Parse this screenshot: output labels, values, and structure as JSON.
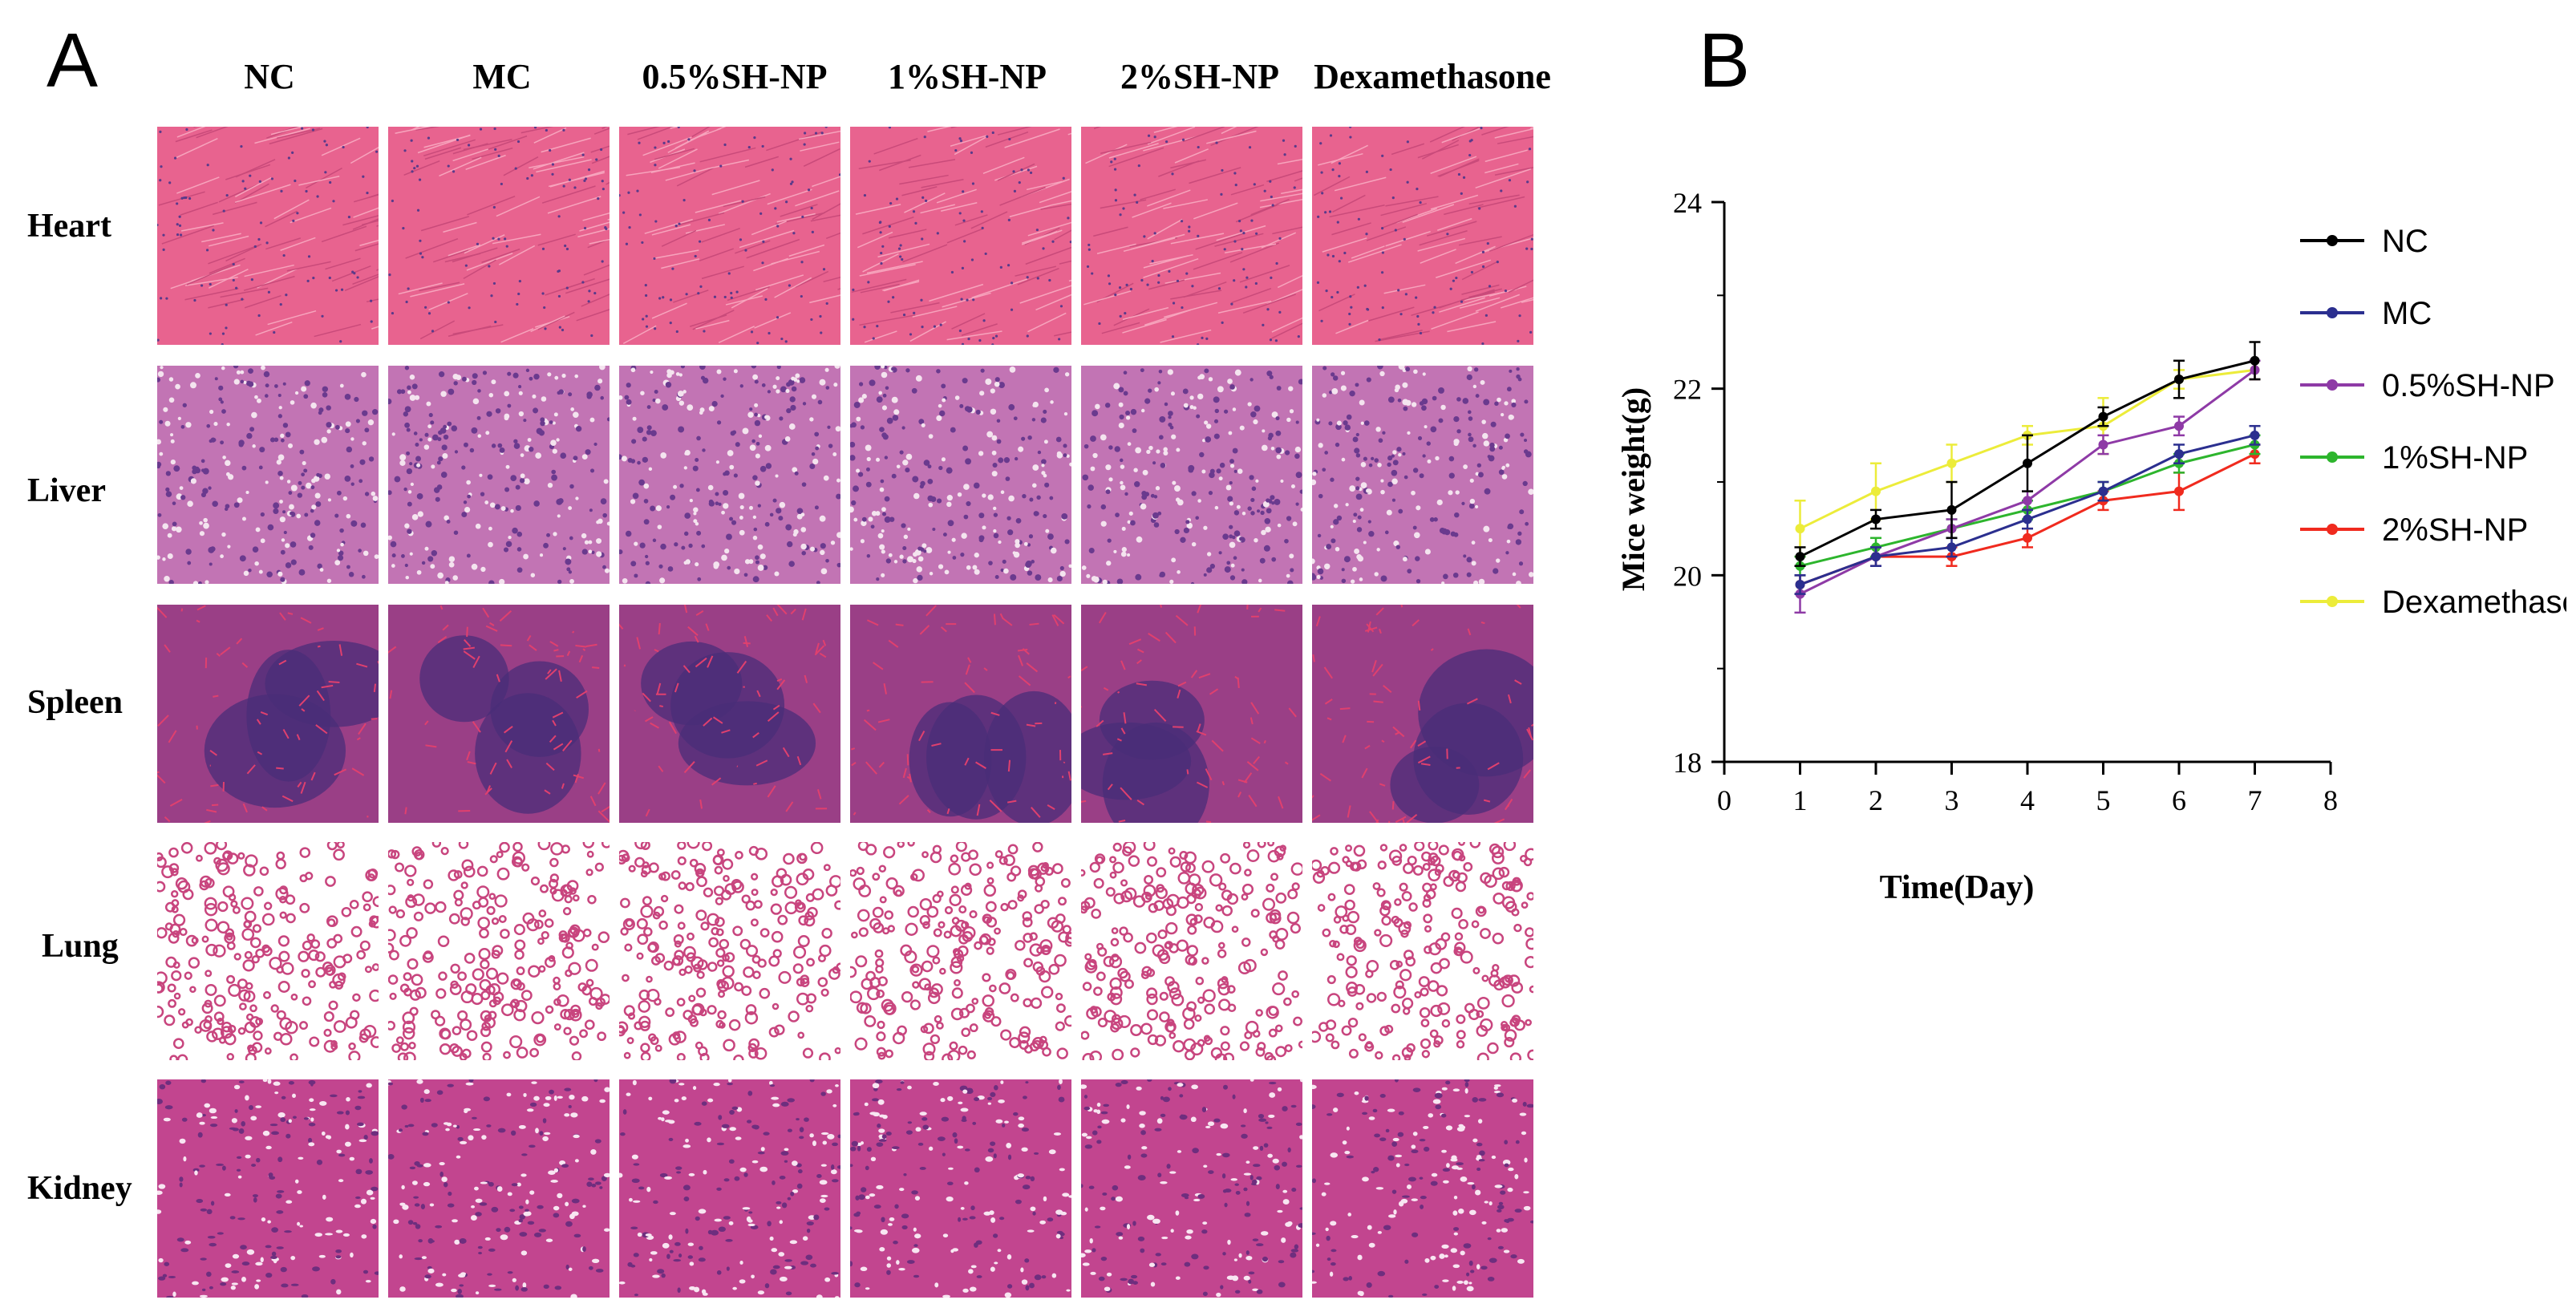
{
  "panels": {
    "a_label": "A",
    "b_label": "B"
  },
  "histology": {
    "columns": [
      "NC",
      "MC",
      "0.5%SH-NP",
      "1%SH-NP",
      "2%SH-NP",
      "Dexamethasone"
    ],
    "rows": [
      "Heart",
      "Liver",
      "Spleen",
      "Lung",
      "Kidney"
    ],
    "tissue_colors": {
      "Heart": "#e8638f",
      "Liver": "#c274b4",
      "Spleen": "#9a3f86",
      "Lung": "#ffffff",
      "Kidney": "#c2458f"
    }
  },
  "chart_data": {
    "type": "line",
    "title": "",
    "xlabel": "Time(Day)",
    "ylabel": "Mice weight(g)",
    "xlim": [
      0,
      8
    ],
    "ylim": [
      18,
      24
    ],
    "x_ticks": [
      0,
      1,
      2,
      3,
      4,
      5,
      6,
      7,
      8
    ],
    "y_ticks": [
      18,
      20,
      22,
      24
    ],
    "grid": false,
    "legend_position": "right",
    "x": [
      1,
      2,
      3,
      4,
      5,
      6,
      7
    ],
    "series": [
      {
        "name": "NC",
        "color": "#000000",
        "values": [
          20.2,
          20.6,
          20.7,
          21.2,
          21.7,
          22.1,
          22.3
        ],
        "errors": [
          0.1,
          0.1,
          0.3,
          0.3,
          0.1,
          0.2,
          0.2
        ]
      },
      {
        "name": "MC",
        "color": "#2b2f8f",
        "values": [
          19.9,
          20.2,
          20.3,
          20.6,
          20.9,
          21.3,
          21.5
        ],
        "errors": [
          0.1,
          0.1,
          0.1,
          0.1,
          0.1,
          0.1,
          0.1
        ]
      },
      {
        "name": "0.5%SH-NP",
        "color": "#8e3aa6",
        "values": [
          19.8,
          20.2,
          20.5,
          20.8,
          21.4,
          21.6,
          22.2
        ],
        "errors": [
          0.2,
          0.1,
          0.1,
          0.1,
          0.1,
          0.1,
          0.1
        ]
      },
      {
        "name": "1%SH-NP",
        "color": "#2db52d",
        "values": [
          20.1,
          20.3,
          20.5,
          20.7,
          20.9,
          21.2,
          21.4
        ],
        "errors": [
          0.1,
          0.1,
          0.1,
          0.1,
          0.1,
          0.1,
          0.1
        ]
      },
      {
        "name": "2%SH-NP",
        "color": "#f02a1e",
        "values": [
          19.9,
          20.2,
          20.2,
          20.4,
          20.8,
          20.9,
          21.3
        ],
        "errors": [
          0.1,
          0.1,
          0.1,
          0.1,
          0.1,
          0.2,
          0.1
        ]
      },
      {
        "name": "Dexamethasone",
        "color": "#ecec3a",
        "values": [
          20.5,
          20.9,
          21.2,
          21.5,
          21.6,
          22.1,
          22.2
        ],
        "errors": [
          0.3,
          0.3,
          0.2,
          0.1,
          0.3,
          0.1,
          0.1
        ]
      }
    ]
  }
}
